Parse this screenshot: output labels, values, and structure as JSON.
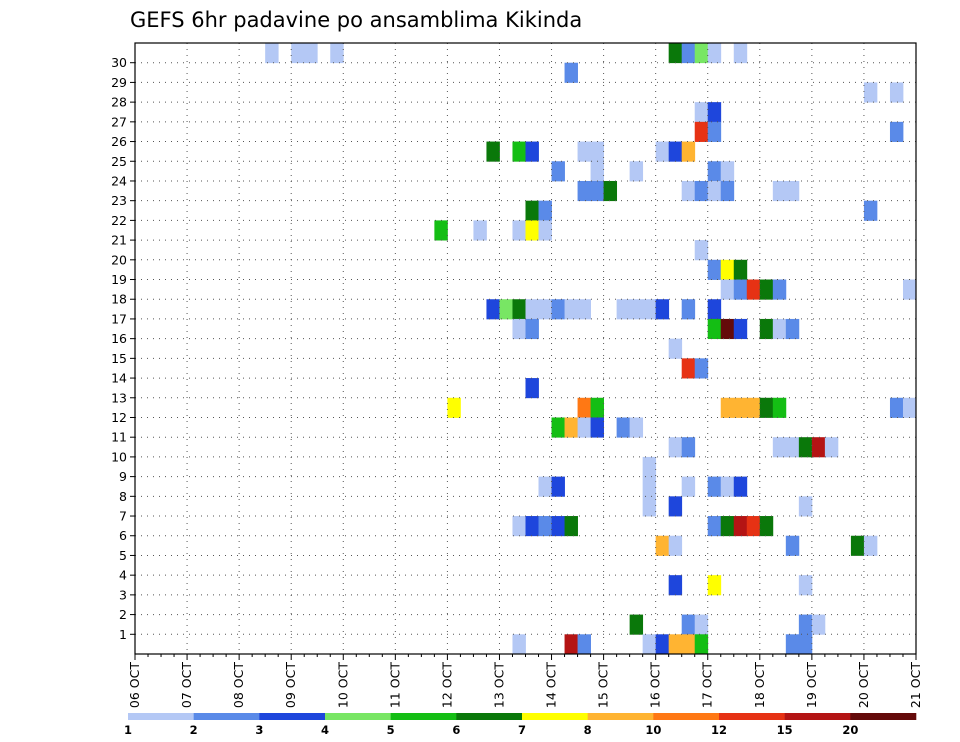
{
  "chart_data": {
    "type": "heatmap",
    "title": "GEFS 6hr padavine po ansamblima Kikinda",
    "xlabel": "",
    "ylabel": "",
    "x_tick_labels": [
      "06 OCT",
      "07 OCT",
      "08 OCT",
      "09 OCT",
      "10 OCT",
      "11 OCT",
      "12 OCT",
      "13 OCT",
      "14 OCT",
      "15 OCT",
      "16 OCT",
      "17 OCT",
      "18 OCT",
      "19 OCT",
      "20 OCT",
      "21 OCT"
    ],
    "y_tick_labels": [
      "1",
      "2",
      "3",
      "4",
      "5",
      "6",
      "7",
      "8",
      "9",
      "10",
      "11",
      "12",
      "13",
      "14",
      "15",
      "16",
      "17",
      "18",
      "19",
      "20",
      "21",
      "22",
      "23",
      "24",
      "25",
      "26",
      "27",
      "28",
      "29",
      "30"
    ],
    "x_range_days": [
      0,
      15
    ],
    "y_range_members": [
      0,
      30
    ],
    "grid": true,
    "colorbar": {
      "labels": [
        "1",
        "2",
        "3",
        "4",
        "5",
        "6",
        "7",
        "8",
        "10",
        "12",
        "15",
        "20"
      ],
      "colors": [
        "#b4c8f5",
        "#5a8ae8",
        "#1e46dc",
        "#78e664",
        "#14be14",
        "#0a780a",
        "#ffff00",
        "#ffb432",
        "#ff7814",
        "#e63214",
        "#b41414",
        "#640a0a"
      ]
    },
    "cells_note": "each cell: [6h time step index from 06 OCT 00z, ensemble member (0 = control), colour level index]",
    "cells": [
      [
        10,
        30,
        0
      ],
      [
        12,
        30,
        0
      ],
      [
        13,
        30,
        0
      ],
      [
        15,
        30,
        0
      ],
      [
        41,
        30,
        5
      ],
      [
        42,
        30,
        1
      ],
      [
        43,
        30,
        3
      ],
      [
        44,
        30,
        0
      ],
      [
        46,
        30,
        0
      ],
      [
        33,
        29,
        1
      ],
      [
        56,
        28,
        0
      ],
      [
        58,
        28,
        0
      ],
      [
        43,
        27,
        0
      ],
      [
        44,
        27,
        2
      ],
      [
        43,
        26,
        9
      ],
      [
        44,
        26,
        1
      ],
      [
        58,
        26,
        1
      ],
      [
        27,
        25,
        5
      ],
      [
        29,
        25,
        4
      ],
      [
        30,
        25,
        2
      ],
      [
        34,
        25,
        0
      ],
      [
        35,
        25,
        0
      ],
      [
        40,
        25,
        0
      ],
      [
        41,
        25,
        2
      ],
      [
        42,
        25,
        7
      ],
      [
        35,
        24,
        0
      ],
      [
        32,
        24,
        1
      ],
      [
        38,
        24,
        0
      ],
      [
        44,
        24,
        1
      ],
      [
        45,
        24,
        0
      ],
      [
        34,
        23,
        1
      ],
      [
        35,
        23,
        1
      ],
      [
        36,
        23,
        5
      ],
      [
        42,
        23,
        0
      ],
      [
        43,
        23,
        1
      ],
      [
        44,
        23,
        0
      ],
      [
        45,
        23,
        1
      ],
      [
        49,
        23,
        0
      ],
      [
        50,
        23,
        0
      ],
      [
        30,
        22,
        5
      ],
      [
        31,
        22,
        1
      ],
      [
        56,
        22,
        1
      ],
      [
        23,
        21,
        4
      ],
      [
        26,
        21,
        0
      ],
      [
        29,
        21,
        0
      ],
      [
        30,
        21,
        6
      ],
      [
        31,
        21,
        0
      ],
      [
        43,
        20,
        0
      ],
      [
        44,
        19,
        1
      ],
      [
        45,
        19,
        6
      ],
      [
        46,
        19,
        5
      ],
      [
        45,
        18,
        0
      ],
      [
        46,
        18,
        1
      ],
      [
        47,
        18,
        9
      ],
      [
        48,
        18,
        5
      ],
      [
        49,
        18,
        1
      ],
      [
        59,
        18,
        0
      ],
      [
        27,
        17,
        2
      ],
      [
        28,
        17,
        3
      ],
      [
        29,
        17,
        5
      ],
      [
        30,
        17,
        0
      ],
      [
        31,
        17,
        0
      ],
      [
        32,
        17,
        1
      ],
      [
        33,
        17,
        0
      ],
      [
        34,
        17,
        0
      ],
      [
        37,
        17,
        0
      ],
      [
        38,
        17,
        0
      ],
      [
        39,
        17,
        0
      ],
      [
        40,
        17,
        2
      ],
      [
        42,
        17,
        1
      ],
      [
        44,
        17,
        2
      ],
      [
        29,
        16,
        0
      ],
      [
        30,
        16,
        1
      ],
      [
        44,
        16,
        4
      ],
      [
        45,
        16,
        11
      ],
      [
        46,
        16,
        2
      ],
      [
        48,
        16,
        5
      ],
      [
        49,
        16,
        0
      ],
      [
        50,
        16,
        1
      ],
      [
        41,
        15,
        0
      ],
      [
        42,
        14,
        9
      ],
      [
        43,
        14,
        1
      ],
      [
        30,
        13,
        2
      ],
      [
        24,
        12,
        6
      ],
      [
        34,
        12,
        8
      ],
      [
        35,
        12,
        4
      ],
      [
        45,
        12,
        7
      ],
      [
        46,
        12,
        7
      ],
      [
        47,
        12,
        7
      ],
      [
        48,
        12,
        5
      ],
      [
        49,
        12,
        4
      ],
      [
        58,
        12,
        1
      ],
      [
        59,
        12,
        0
      ],
      [
        32,
        11,
        4
      ],
      [
        33,
        11,
        7
      ],
      [
        34,
        11,
        0
      ],
      [
        35,
        11,
        2
      ],
      [
        37,
        11,
        1
      ],
      [
        38,
        11,
        0
      ],
      [
        41,
        10,
        0
      ],
      [
        42,
        10,
        1
      ],
      [
        49,
        10,
        0
      ],
      [
        50,
        10,
        0
      ],
      [
        51,
        10,
        5
      ],
      [
        52,
        10,
        10
      ],
      [
        53,
        10,
        0
      ],
      [
        39,
        9,
        0
      ],
      [
        31,
        8,
        0
      ],
      [
        32,
        8,
        2
      ],
      [
        39,
        8,
        0
      ],
      [
        42,
        8,
        0
      ],
      [
        44,
        8,
        1
      ],
      [
        45,
        8,
        0
      ],
      [
        46,
        8,
        2
      ],
      [
        39,
        7,
        0
      ],
      [
        41,
        7,
        2
      ],
      [
        51,
        7,
        0
      ],
      [
        29,
        6,
        0
      ],
      [
        30,
        6,
        2
      ],
      [
        31,
        6,
        1
      ],
      [
        32,
        6,
        2
      ],
      [
        33,
        6,
        5
      ],
      [
        44,
        6,
        1
      ],
      [
        45,
        6,
        5
      ],
      [
        46,
        6,
        10
      ],
      [
        47,
        6,
        9
      ],
      [
        48,
        6,
        5
      ],
      [
        40,
        5,
        7
      ],
      [
        41,
        5,
        0
      ],
      [
        50,
        5,
        1
      ],
      [
        55,
        5,
        5
      ],
      [
        56,
        5,
        0
      ],
      [
        41,
        3,
        2
      ],
      [
        44,
        3,
        6
      ],
      [
        51,
        3,
        0
      ],
      [
        38,
        1,
        5
      ],
      [
        42,
        1,
        1
      ],
      [
        43,
        1,
        0
      ],
      [
        51,
        1,
        1
      ],
      [
        52,
        1,
        0
      ],
      [
        29,
        0,
        0
      ],
      [
        33,
        0,
        10
      ],
      [
        34,
        0,
        1
      ],
      [
        39,
        0,
        0
      ],
      [
        40,
        0,
        2
      ],
      [
        41,
        0,
        7
      ],
      [
        42,
        0,
        7
      ],
      [
        43,
        0,
        4
      ],
      [
        50,
        0,
        1
      ],
      [
        51,
        0,
        1
      ]
    ]
  }
}
